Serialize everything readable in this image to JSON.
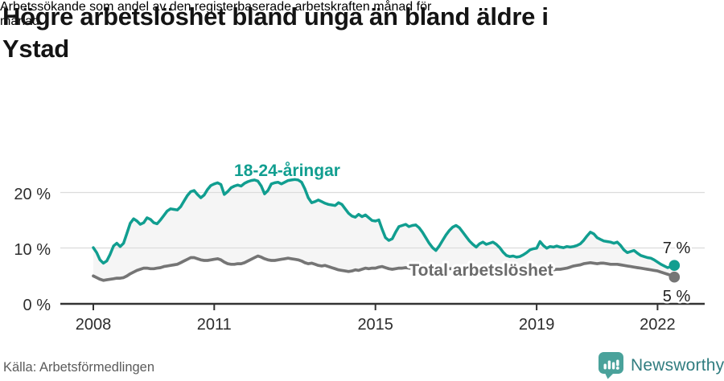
{
  "header": {
    "title_lines": [
      "Högre arbetslöshet bland unga än bland äldre i",
      "Ystad"
    ],
    "subtitle_lines": [
      "Arbetssökande som andel av den registerbaserade arbetskraften månad för",
      "månad."
    ]
  },
  "chart": {
    "y_tick_labels": [
      "20 %",
      "10 %",
      "0 %"
    ],
    "x_tick_labels": [
      "2008",
      "2011",
      "2015",
      "2019",
      "2022"
    ],
    "series_label_youth": "18-24-åringar",
    "series_label_total": "Total arbetslöshet",
    "end_label_youth": "7 %",
    "end_label_total": "5 %"
  },
  "chart_data": {
    "type": "line",
    "title": "Högre arbetslöshet bland unga än bland äldre i Ystad",
    "subtitle": "Arbetssökande som andel av den registerbaserade arbetskraften månad för månad.",
    "x_start_year": 2008,
    "x_step_months": 1,
    "x_ticks": [
      2008,
      2011,
      2015,
      2019,
      2022
    ],
    "y_ticks": [
      0,
      10,
      20
    ],
    "ylim": [
      0,
      24
    ],
    "unit": "%",
    "grid": "horizontal",
    "legend": "inline-labels",
    "colors": {
      "youth": "#119e90",
      "total": "#757575",
      "band_fill": "#f5f5f5",
      "gridline": "#dcdcdc",
      "axis": "#333333"
    },
    "series": [
      {
        "name": "18-24-åringar",
        "color": "#119e90",
        "last_value_label": "7 %",
        "values": [
          10.2,
          9.3,
          8.0,
          7.4,
          7.8,
          9.0,
          10.5,
          11.0,
          10.4,
          11.0,
          12.8,
          14.6,
          15.4,
          15.0,
          14.4,
          14.7,
          15.6,
          15.3,
          14.7,
          14.5,
          15.2,
          16.0,
          16.8,
          17.2,
          17.1,
          17.0,
          17.6,
          18.6,
          19.6,
          20.3,
          20.5,
          19.8,
          19.2,
          19.7,
          20.7,
          21.4,
          21.7,
          21.9,
          21.6,
          19.8,
          20.3,
          21.0,
          21.3,
          21.5,
          21.3,
          21.8,
          22.1,
          22.3,
          22.4,
          22.2,
          21.3,
          19.9,
          20.5,
          21.7,
          21.9,
          22.0,
          21.7,
          22.0,
          22.3,
          22.4,
          22.5,
          22.4,
          22.0,
          20.8,
          19.2,
          18.3,
          18.5,
          18.8,
          18.5,
          18.2,
          18.0,
          17.9,
          17.8,
          18.3,
          18.0,
          17.2,
          16.4,
          15.9,
          15.7,
          16.2,
          15.8,
          16.1,
          15.6,
          15.1,
          15.0,
          15.2,
          13.5,
          12.0,
          11.5,
          11.8,
          13.0,
          14.0,
          14.2,
          14.4,
          14.0,
          14.2,
          14.3,
          13.8,
          13.0,
          12.0,
          11.0,
          10.2,
          9.7,
          10.5,
          11.5,
          12.5,
          13.3,
          13.9,
          14.2,
          13.8,
          13.0,
          12.2,
          11.4,
          10.8,
          10.3,
          10.9,
          11.2,
          10.8,
          11.0,
          11.2,
          10.8,
          10.2,
          9.4,
          8.8,
          8.6,
          8.7,
          8.5,
          8.6,
          8.9,
          9.3,
          9.8,
          10.0,
          10.1,
          11.3,
          10.6,
          10.1,
          10.4,
          10.3,
          10.5,
          10.3,
          10.2,
          10.4,
          10.3,
          10.4,
          10.6,
          10.9,
          11.5,
          12.3,
          13.0,
          12.7,
          12.0,
          11.7,
          11.4,
          11.3,
          11.2,
          11.0,
          11.2,
          10.6,
          9.8,
          9.3,
          9.5,
          9.7,
          9.2,
          8.8,
          8.6,
          8.4,
          8.3,
          8.0,
          7.6,
          7.2,
          6.9,
          6.6,
          6.8,
          7.0
        ]
      },
      {
        "name": "Total arbetslöshet",
        "color": "#757575",
        "last_value_label": "5 %",
        "values": [
          5.1,
          4.8,
          4.5,
          4.3,
          4.4,
          4.5,
          4.6,
          4.7,
          4.7,
          4.8,
          5.1,
          5.5,
          5.8,
          6.1,
          6.3,
          6.5,
          6.5,
          6.4,
          6.4,
          6.5,
          6.6,
          6.8,
          6.9,
          7.0,
          7.1,
          7.2,
          7.5,
          7.8,
          8.1,
          8.4,
          8.4,
          8.2,
          8.0,
          7.9,
          7.9,
          8.0,
          8.1,
          8.2,
          8.0,
          7.6,
          7.3,
          7.2,
          7.2,
          7.3,
          7.3,
          7.5,
          7.8,
          8.1,
          8.4,
          8.7,
          8.5,
          8.2,
          8.0,
          7.9,
          7.9,
          8.0,
          8.1,
          8.2,
          8.3,
          8.2,
          8.1,
          8.0,
          7.8,
          7.5,
          7.3,
          7.4,
          7.2,
          7.0,
          6.9,
          7.0,
          6.8,
          6.6,
          6.4,
          6.2,
          6.1,
          6.0,
          5.9,
          6.0,
          6.2,
          6.1,
          6.3,
          6.5,
          6.4,
          6.5,
          6.5,
          6.7,
          6.8,
          6.6,
          6.4,
          6.3,
          6.4,
          6.5,
          6.5,
          6.6,
          6.5,
          6.5,
          6.5,
          6.4,
          6.4,
          6.3,
          6.3,
          6.2,
          6.2,
          6.3,
          6.3,
          6.4,
          6.4,
          6.4,
          6.4,
          6.3,
          6.3,
          6.2,
          6.2,
          6.1,
          6.1,
          6.1,
          6.2,
          6.2,
          6.1,
          6.1,
          6.1,
          6.0,
          6.0,
          5.9,
          5.9,
          5.9,
          5.8,
          5.9,
          5.9,
          6.0,
          6.0,
          6.1,
          6.1,
          6.2,
          6.2,
          6.1,
          6.2,
          6.2,
          6.3,
          6.3,
          6.4,
          6.5,
          6.7,
          6.9,
          7.0,
          7.1,
          7.3,
          7.4,
          7.5,
          7.4,
          7.3,
          7.4,
          7.4,
          7.3,
          7.2,
          7.2,
          7.2,
          7.1,
          7.0,
          6.9,
          6.8,
          6.7,
          6.6,
          6.5,
          6.4,
          6.3,
          6.2,
          6.1,
          6.0,
          5.8,
          5.6,
          5.4,
          5.2,
          4.9
        ]
      }
    ]
  },
  "footer": {
    "source": "Källa: Arbetsförmedlingen",
    "brand": "Newsworthy"
  }
}
